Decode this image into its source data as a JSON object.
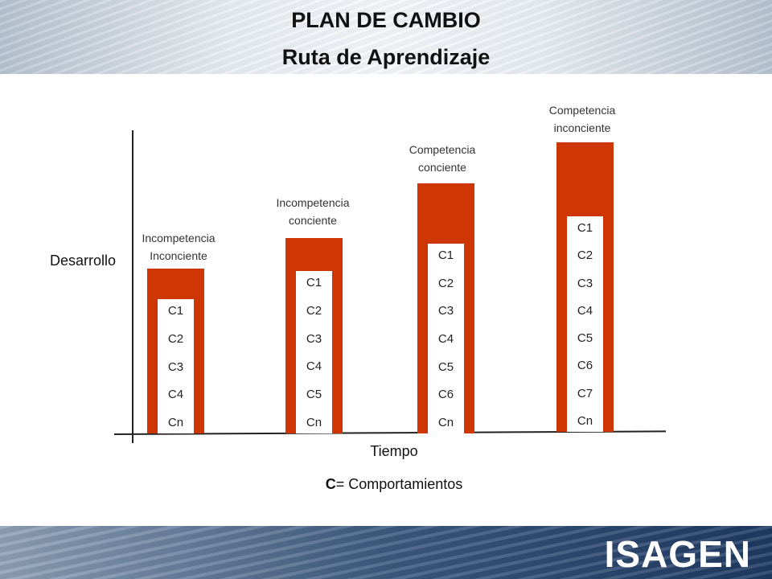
{
  "header": {
    "title": "PLAN DE CAMBIO",
    "subtitle": "Ruta de Aprendizaje"
  },
  "axes": {
    "ylabel": "Desarrollo",
    "xlabel": "Tiempo"
  },
  "stages": [
    {
      "label_line1": "Incompetencia",
      "label_line2": "Inconciente",
      "items": [
        "C1",
        "C2",
        "C3",
        "C4",
        "Cn"
      ]
    },
    {
      "label_line1": "Incompetencia",
      "label_line2": "conciente",
      "items": [
        "C1",
        "C2",
        "C3",
        "C4",
        "C5",
        "Cn"
      ]
    },
    {
      "label_line1": "Competencia",
      "label_line2": "conciente",
      "items": [
        "C1",
        "C2",
        "C3",
        "C4",
        "C5",
        "C6",
        "Cn"
      ]
    },
    {
      "label_line1": "Competencia",
      "label_line2": "inconciente",
      "items": [
        "C1",
        "C2",
        "C3",
        "C4",
        "C5",
        "C6",
        "C7",
        "Cn"
      ]
    }
  ],
  "legend": {
    "key": "C",
    "text": "= Comportamientos"
  },
  "footer": {
    "logo": "ISAGEN"
  },
  "colors": {
    "bar": "#cf3605"
  }
}
